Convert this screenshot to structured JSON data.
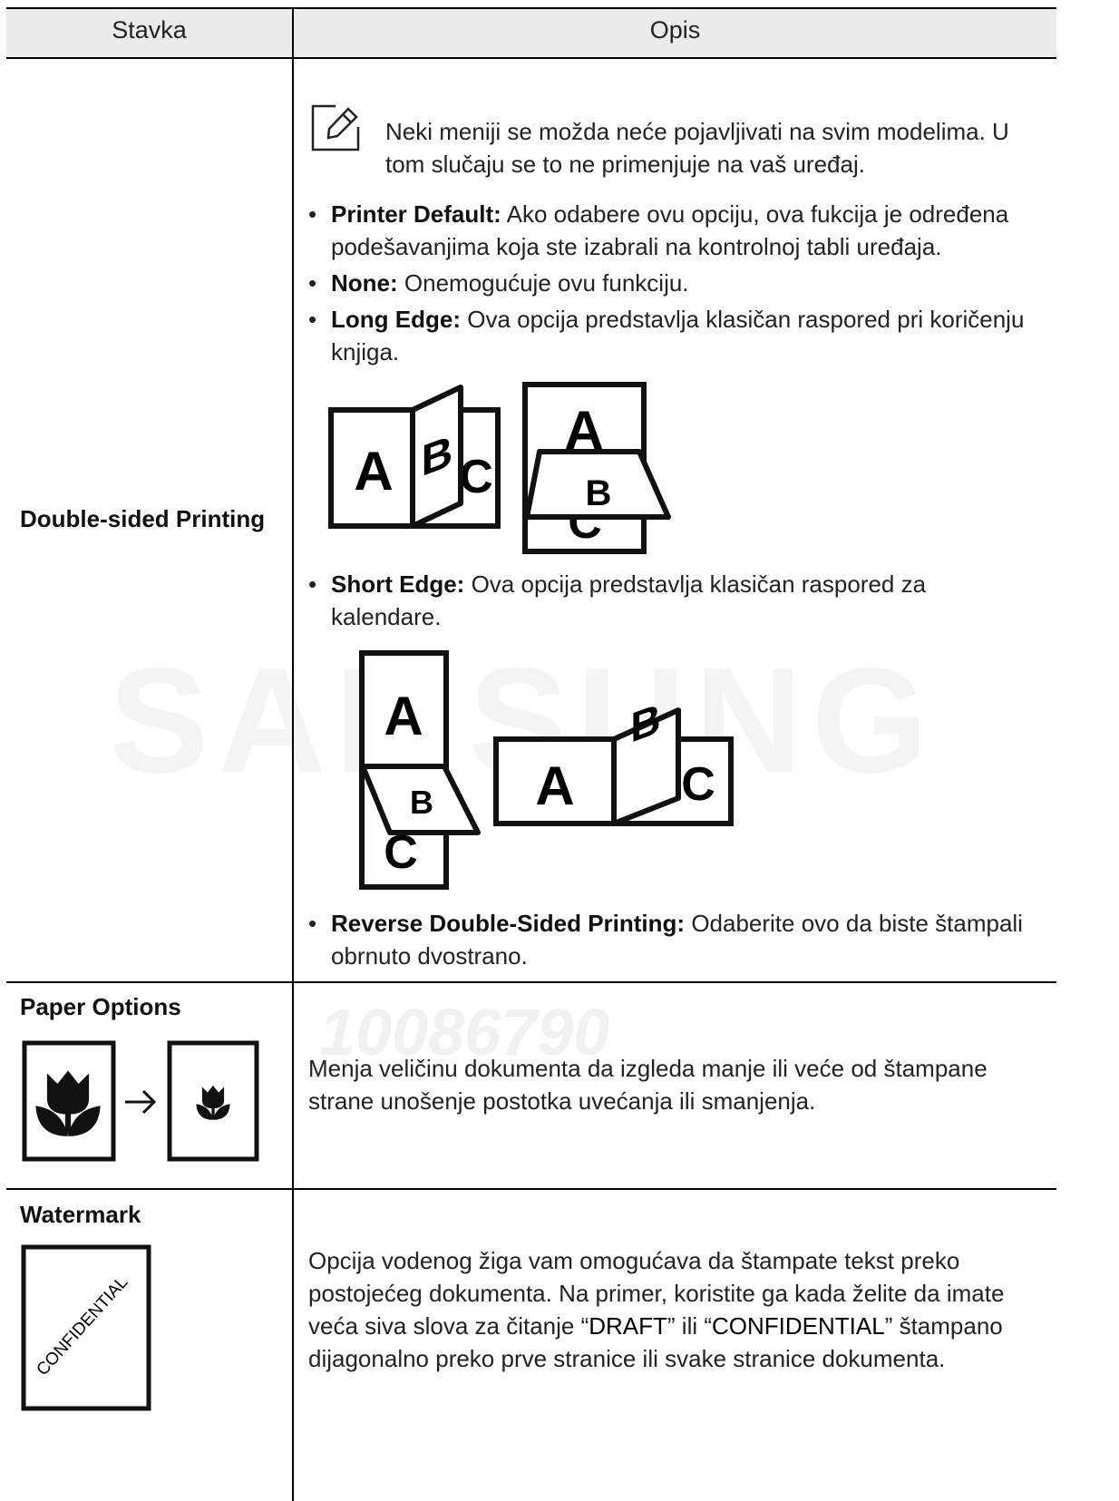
{
  "header": {
    "columns": [
      "Stavka",
      "Opis"
    ]
  },
  "watermarks": [
    "SAMSUNG",
    "10086790"
  ],
  "rows": [
    {
      "label": "Double-sided Printing",
      "note": "Neki meniji se možda neće pojavljivati na svim modelima. U tom slučaju se to ne primenjuje na vaš uređaj.",
      "bullets": [
        {
          "term": "Printer Default:",
          "text": "Ako odabere ovu opciju, ova fukcija je određena podešavanjima koja ste izabrali na kontrolnoj tabli uređaja."
        },
        {
          "term": "None:",
          "text": "Onemogućuje ovu funkciju."
        },
        {
          "term": "Long Edge:",
          "text": "Ova opcija predstavlja klasičan raspored pri koričenju knjiga.",
          "figure": [
            "A",
            "B",
            "C",
            "A",
            "B",
            "C"
          ]
        },
        {
          "term": "Short Edge:",
          "text": "Ova opcija predstavlja klasičan raspored za kalendare.",
          "figure": [
            "A",
            "B",
            "C",
            "A",
            "B",
            "C"
          ]
        },
        {
          "term": "Reverse Double-Sided Printing:",
          "text": "Odaberite ovo da biste štampali obrnuto dvostrano."
        }
      ]
    },
    {
      "label": "Paper Options",
      "description": "Menja veličinu dokumenta da izgleda manje ili veće od štampane strane unošenje postotka uvećanja ili smanjenja."
    },
    {
      "label": "Watermark",
      "icon_text": "CONFIDENTIAL",
      "description_parts": [
        "Opcija vodenog žiga vam omogućava da štampate tekst preko postojećeg dokumenta. Na primer, koristite ga kada želite da imate veća siva slova za čitanje “",
        "DRAFT",
        "” ili “",
        "CONFIDENTIAL",
        "” štampano dijagonalno preko prve stranice ili svake stranice dokumenta."
      ]
    }
  ]
}
